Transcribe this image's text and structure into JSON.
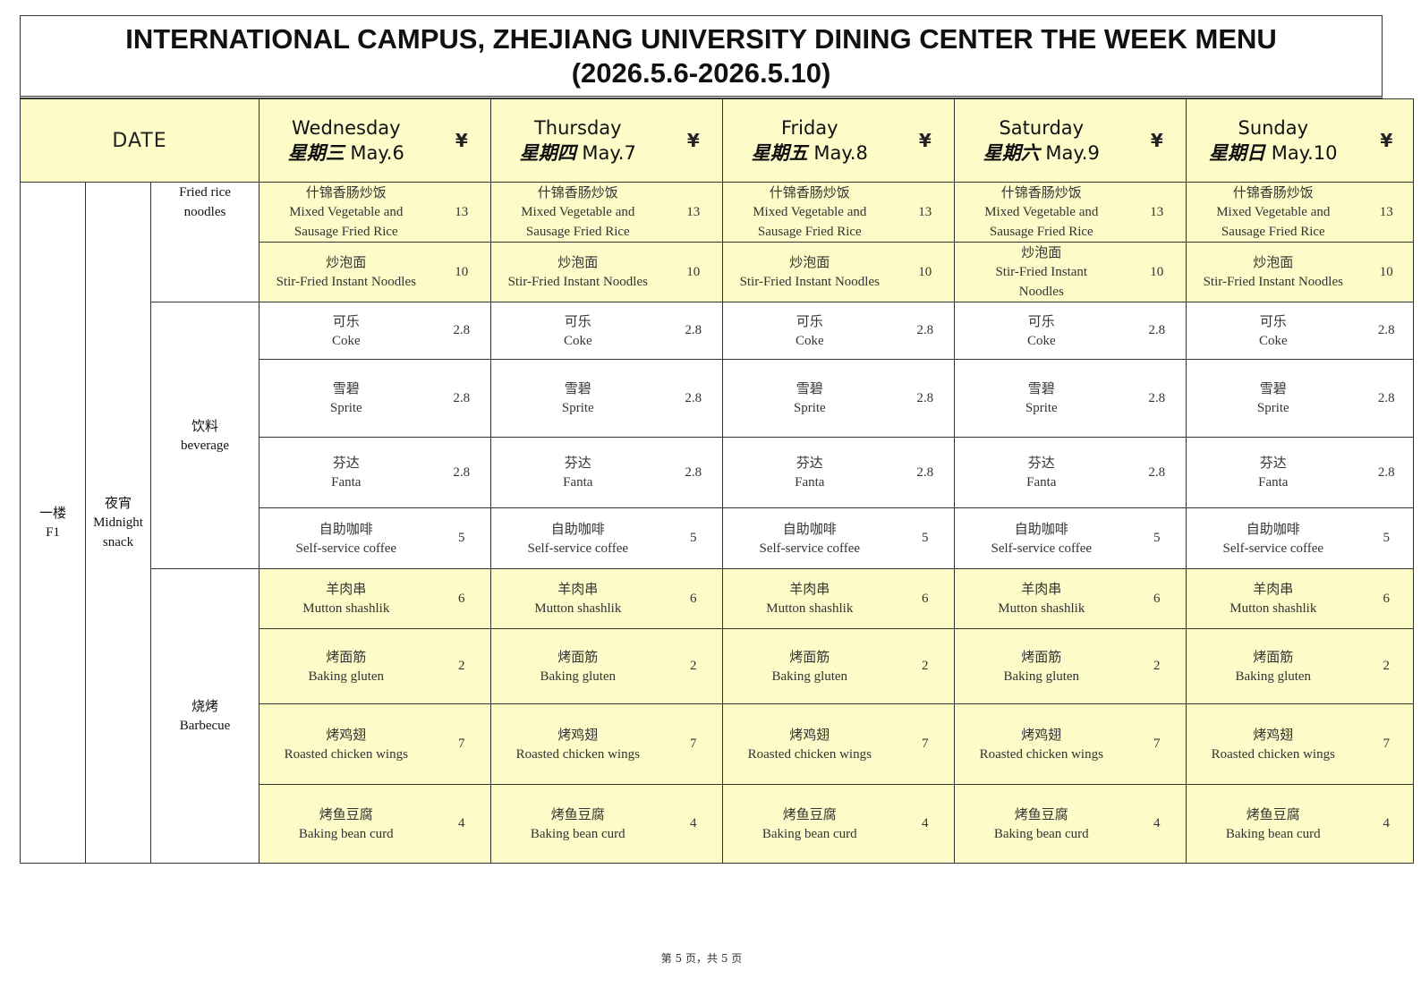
{
  "title": {
    "line1": "INTERNATIONAL CAMPUS, ZHEJIANG UNIVERSITY DINING CENTER THE WEEK MENU",
    "line2": "(2026.5.6-2026.5.10)"
  },
  "header": {
    "date_label": "DATE",
    "currency_symbol": "¥",
    "days": [
      {
        "en": "Wednesday",
        "cn": "星期三",
        "date": "May.6"
      },
      {
        "en": "Thursday",
        "cn": "星期四",
        "date": "May.7"
      },
      {
        "en": "Friday",
        "cn": "星期五",
        "date": "May.8"
      },
      {
        "en": "Saturday",
        "cn": "星期六",
        "date": "May.9"
      },
      {
        "en": "Sunday",
        "cn": "星期日",
        "date": "May.10"
      }
    ]
  },
  "floor": {
    "cn": "一楼",
    "en": "F1"
  },
  "meal": {
    "cn": "夜宵",
    "en": "Midnight snack"
  },
  "categories": [
    {
      "cn": "",
      "en": "Fried rice noodles"
    },
    {
      "cn": "饮料",
      "en": "beverage"
    },
    {
      "cn": "烧烤",
      "en": "Barbecue"
    }
  ],
  "rows": [
    {
      "cn": "什锦香肠炒饭",
      "en": "Mixed Vegetable and Sausage Fried Rice",
      "prices": [
        "13",
        "13",
        "13",
        "13",
        "13"
      ]
    },
    {
      "cn": "炒泡面",
      "en": "Stir-Fried Instant Noodles",
      "prices": [
        "10",
        "10",
        "10",
        "10",
        "10"
      ]
    },
    {
      "cn": "可乐",
      "en": "Coke",
      "prices": [
        "2.8",
        "2.8",
        "2.8",
        "2.8",
        "2.8"
      ]
    },
    {
      "cn": "雪碧",
      "en": "Sprite",
      "prices": [
        "2.8",
        "2.8",
        "2.8",
        "2.8",
        "2.8"
      ]
    },
    {
      "cn": "芬达",
      "en": "Fanta",
      "prices": [
        "2.8",
        "2.8",
        "2.8",
        "2.8",
        "2.8"
      ]
    },
    {
      "cn": "自助咖啡",
      "en": "Self-service coffee",
      "prices": [
        "5",
        "5",
        "5",
        "5",
        "5"
      ]
    },
    {
      "cn": "羊肉串",
      "en": "Mutton shashlik",
      "prices": [
        "6",
        "6",
        "6",
        "6",
        "6"
      ]
    },
    {
      "cn": "烤面筋",
      "en": "Baking gluten",
      "prices": [
        "2",
        "2",
        "2",
        "2",
        "2"
      ]
    },
    {
      "cn": "烤鸡翅",
      "en": "Roasted chicken wings",
      "prices": [
        "7",
        "7",
        "7",
        "7",
        "7"
      ]
    },
    {
      "cn": "烤鱼豆腐",
      "en": "Baking bean curd",
      "prices": [
        "4",
        "4",
        "4",
        "4",
        "4"
      ]
    }
  ],
  "footer": "第 5 页，共 5 页"
}
